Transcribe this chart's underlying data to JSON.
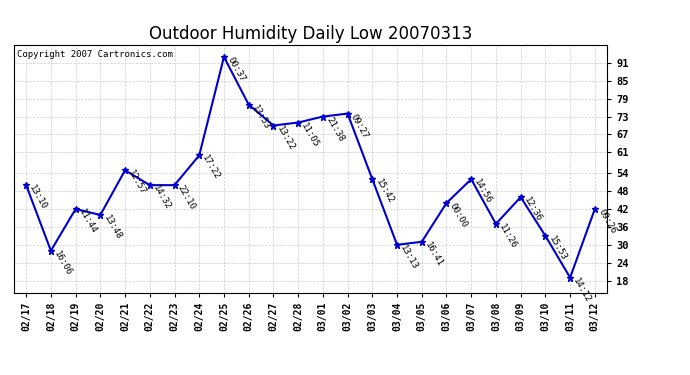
{
  "title": "Outdoor Humidity Daily Low 20070313",
  "copyright": "Copyright 2007 Cartronics.com",
  "dates": [
    "02/17",
    "02/18",
    "02/19",
    "02/20",
    "02/21",
    "02/22",
    "02/23",
    "02/24",
    "02/25",
    "02/26",
    "02/27",
    "02/28",
    "03/01",
    "03/02",
    "03/03",
    "03/04",
    "03/05",
    "03/06",
    "03/07",
    "03/08",
    "03/09",
    "03/10",
    "03/11",
    "03/12"
  ],
  "values": [
    50,
    28,
    42,
    40,
    55,
    50,
    50,
    60,
    93,
    77,
    70,
    71,
    73,
    74,
    52,
    30,
    31,
    44,
    52,
    37,
    46,
    33,
    19,
    42
  ],
  "time_labels": [
    "13:10",
    "16:06",
    "11:44",
    "13:48",
    "12:57",
    "14:32",
    "22:10",
    "17:22",
    "00:37",
    "13:53",
    "13:22",
    "11:05",
    "21:38",
    "09:27",
    "15:42",
    "13:13",
    "16:41",
    "00:00",
    "14:56",
    "11:26",
    "12:36",
    "15:53",
    "14:12",
    "09:26"
  ],
  "line_color": "#0000cc",
  "bg_color": "#ffffff",
  "grid_color": "#cccccc",
  "yticks": [
    18,
    24,
    30,
    36,
    42,
    48,
    54,
    61,
    67,
    73,
    79,
    85,
    91
  ],
  "ylim": [
    14,
    97
  ],
  "title_fontsize": 12,
  "label_fontsize": 6.5,
  "copyright_fontsize": 6.5,
  "xtick_fontsize": 7,
  "ytick_fontsize": 7.5
}
